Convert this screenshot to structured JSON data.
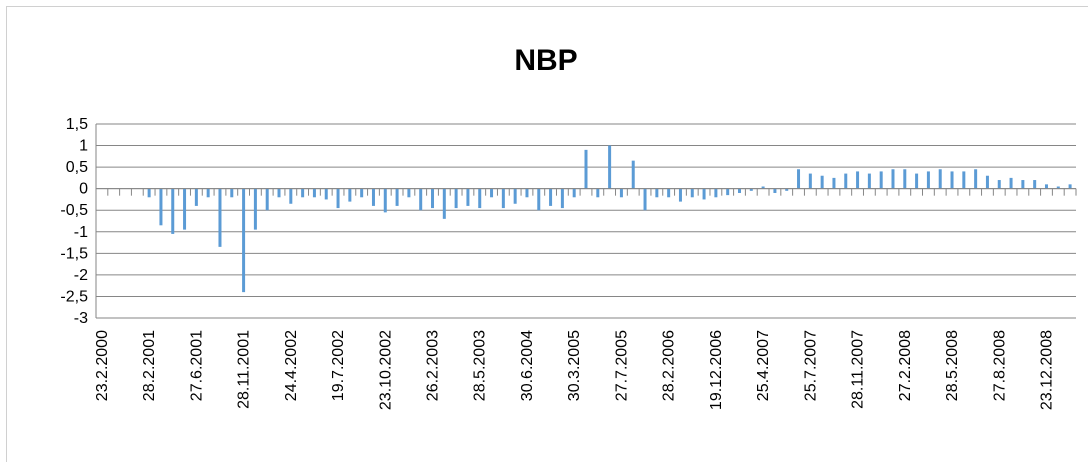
{
  "chart_data": {
    "type": "bar",
    "title": "NBP",
    "xlabel": "",
    "ylabel": "",
    "ylim": [
      -3,
      1.5
    ],
    "yticks": [
      "1,5",
      "1",
      "0,5",
      "0",
      "-0,5",
      "-1",
      "-1,5",
      "-2",
      "-2,5",
      "-3"
    ],
    "ytick_values": [
      1.5,
      1,
      0.5,
      0,
      -0.5,
      -1,
      -1.5,
      -2,
      -2.5,
      -3
    ],
    "grid": true,
    "bar_color": "#5b9bd5",
    "grid_color": "#868686",
    "x_tick_labels": [
      {
        "label": "23.2.2000",
        "index": 0
      },
      {
        "label": "28.2.2001",
        "index": 4
      },
      {
        "label": "27.6.2001",
        "index": 8
      },
      {
        "label": "28.11.2001",
        "index": 12
      },
      {
        "label": "24.4.2002",
        "index": 16
      },
      {
        "label": "19.7.2002",
        "index": 20
      },
      {
        "label": "23.10.2002",
        "index": 24
      },
      {
        "label": "26.2.2003",
        "index": 28
      },
      {
        "label": "28.5.2003",
        "index": 32
      },
      {
        "label": "30.6.2004",
        "index": 36
      },
      {
        "label": "30.3.2005",
        "index": 40
      },
      {
        "label": "27.7.2005",
        "index": 44
      },
      {
        "label": "28.2.2006",
        "index": 48
      },
      {
        "label": "19.12.2006",
        "index": 52
      },
      {
        "label": "25.4.2007",
        "index": 56
      },
      {
        "label": "25.7.2007",
        "index": 60
      },
      {
        "label": "28.11.2007",
        "index": 64
      },
      {
        "label": "27.2.2008",
        "index": 68
      },
      {
        "label": "28.5.2008",
        "index": 72
      },
      {
        "label": "27.8.2008",
        "index": 76
      },
      {
        "label": "23.12.2008",
        "index": 80
      }
    ],
    "values": [
      0,
      0,
      0,
      0,
      -0.2,
      -0.85,
      -1.05,
      -0.95,
      -0.4,
      -0.2,
      -1.35,
      -0.2,
      -2.4,
      -0.95,
      -0.5,
      -0.2,
      -0.35,
      -0.2,
      -0.2,
      -0.25,
      -0.45,
      -0.3,
      -0.2,
      -0.4,
      -0.55,
      -0.4,
      -0.2,
      -0.5,
      -0.45,
      -0.7,
      -0.45,
      -0.4,
      -0.45,
      -0.2,
      -0.45,
      -0.35,
      -0.2,
      -0.5,
      -0.4,
      -0.45,
      -0.2,
      0.9,
      -0.2,
      1.0,
      -0.2,
      0.65,
      -0.5,
      -0.2,
      -0.2,
      -0.3,
      -0.2,
      -0.25,
      -0.2,
      -0.15,
      -0.1,
      -0.05,
      0.05,
      -0.1,
      -0.05,
      0.45,
      0.35,
      0.3,
      0.25,
      0.35,
      0.4,
      0.35,
      0.4,
      0.45,
      0.45,
      0.35,
      0.4,
      0.45,
      0.4,
      0.4,
      0.45,
      0.3,
      0.2,
      0.25,
      0.2,
      0.2,
      0.1,
      0.05,
      0.1
    ]
  }
}
